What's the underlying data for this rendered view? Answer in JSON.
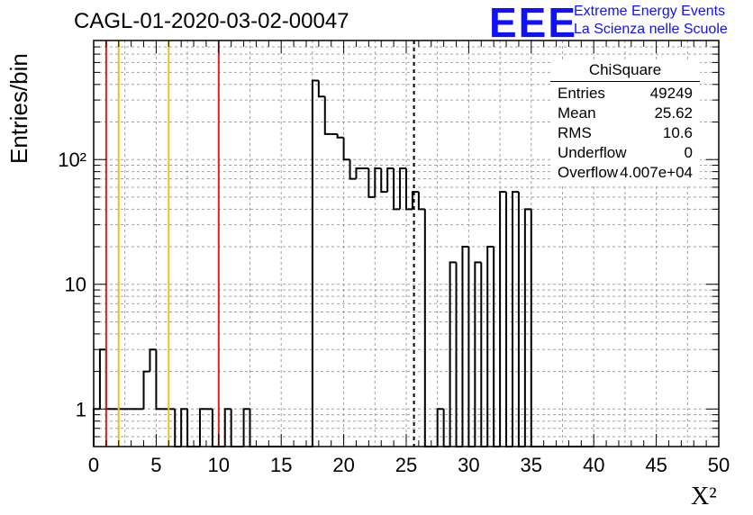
{
  "header": {
    "title": "CAGL-01-2020-03-02-00047",
    "logo_text": "EEE",
    "logo_line1": "Extreme Energy Events",
    "logo_line2": "La Scienza nelle Scuole"
  },
  "stats_box": {
    "title": "ChiSquare",
    "rows": [
      {
        "key": "Entries",
        "value": "49249"
      },
      {
        "key": "Mean",
        "value": "25.62"
      },
      {
        "key": "RMS",
        "value": "10.6"
      },
      {
        "key": "Underflow",
        "value": "0"
      },
      {
        "key": "Overflow",
        "value": "4.007e+04"
      }
    ]
  },
  "colors": {
    "histogram": "#000000",
    "red_lines": "#e02020",
    "yellow_lines": "#f0c020",
    "grid": "#a0a0a0",
    "logo": "#1010ff"
  },
  "chart_data": {
    "type": "histogram",
    "title": "CAGL-01-2020-03-02-00047",
    "xlabel": "X²",
    "ylabel": "Entries/bin",
    "xlim": [
      0,
      50
    ],
    "ylim": [
      0.5,
      900
    ],
    "y_scale": "log",
    "grid": true,
    "bin_width": 0.5,
    "x_ticks": [
      "0",
      "5",
      "10",
      "15",
      "20",
      "25",
      "30",
      "35",
      "40",
      "45",
      "50"
    ],
    "y_ticks": [
      {
        "value": 1,
        "label": "1"
      },
      {
        "value": 10,
        "label": "10"
      },
      {
        "value": 100,
        "label": "10²"
      }
    ],
    "values": [
      1,
      3,
      1,
      1,
      1,
      1,
      1,
      1,
      2,
      3,
      1,
      1,
      1,
      0,
      1,
      0,
      0,
      1,
      1,
      0,
      0,
      1,
      0,
      0,
      1,
      0,
      0,
      0,
      0,
      0,
      0,
      0,
      0,
      0,
      0,
      430,
      320,
      160,
      160,
      150,
      100,
      70,
      85,
      85,
      50,
      85,
      55,
      85,
      40,
      85,
      40,
      55,
      40,
      0,
      0,
      1,
      0,
      15,
      0,
      20,
      0,
      15,
      0,
      20,
      0,
      55,
      0,
      55,
      0,
      40,
      0,
      0,
      0,
      0,
      0,
      0,
      0,
      0,
      0,
      0
    ],
    "reference_lines": [
      {
        "x": 1,
        "color": "red"
      },
      {
        "x": 2,
        "color": "yellow"
      },
      {
        "x": 6,
        "color": "yellow"
      },
      {
        "x": 10,
        "color": "red"
      },
      {
        "x": 25.62,
        "color": "black",
        "style": "dashed"
      }
    ]
  }
}
